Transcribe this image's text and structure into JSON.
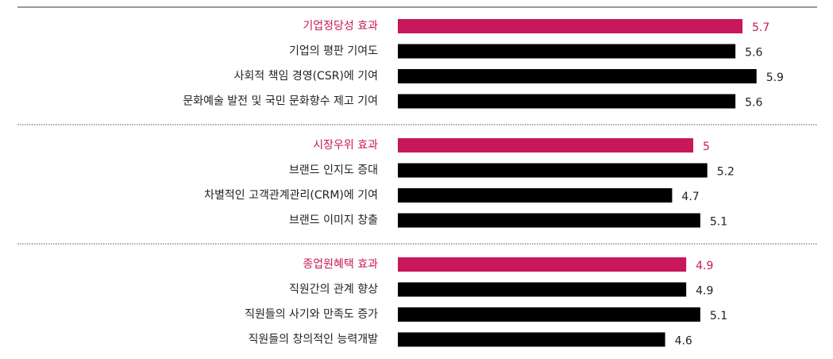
{
  "chart_data": {
    "type": "bar",
    "color": "#000000",
    "highlight_color": "#c8175a",
    "xlim": [
      0.8,
      6.4
    ],
    "groups": [
      {
        "categories": [
          "기업정당성 효과",
          "기업의 평판 기여도",
          "사회적 책임 경영(CSR)에 기여",
          "문화예술 발전 및 국민 문화향수 제고 기여"
        ],
        "values": [
          5.7,
          5.6,
          5.9,
          5.6
        ]
      },
      {
        "categories": [
          "시장우위 효과",
          "브랜드 인지도 증대",
          "차별적인 고객관계관리(CRM)에 기여",
          "브랜드 이미지 창출"
        ],
        "values": [
          5.0,
          5.2,
          4.7,
          5.1
        ]
      },
      {
        "categories": [
          "종업원혜택 효과",
          "직원간의 관계 향상",
          "직원들의 사기와 만족도 증가",
          "직원들의 창의적인 능력개발"
        ],
        "values": [
          4.9,
          4.9,
          5.1,
          4.6
        ]
      }
    ]
  }
}
